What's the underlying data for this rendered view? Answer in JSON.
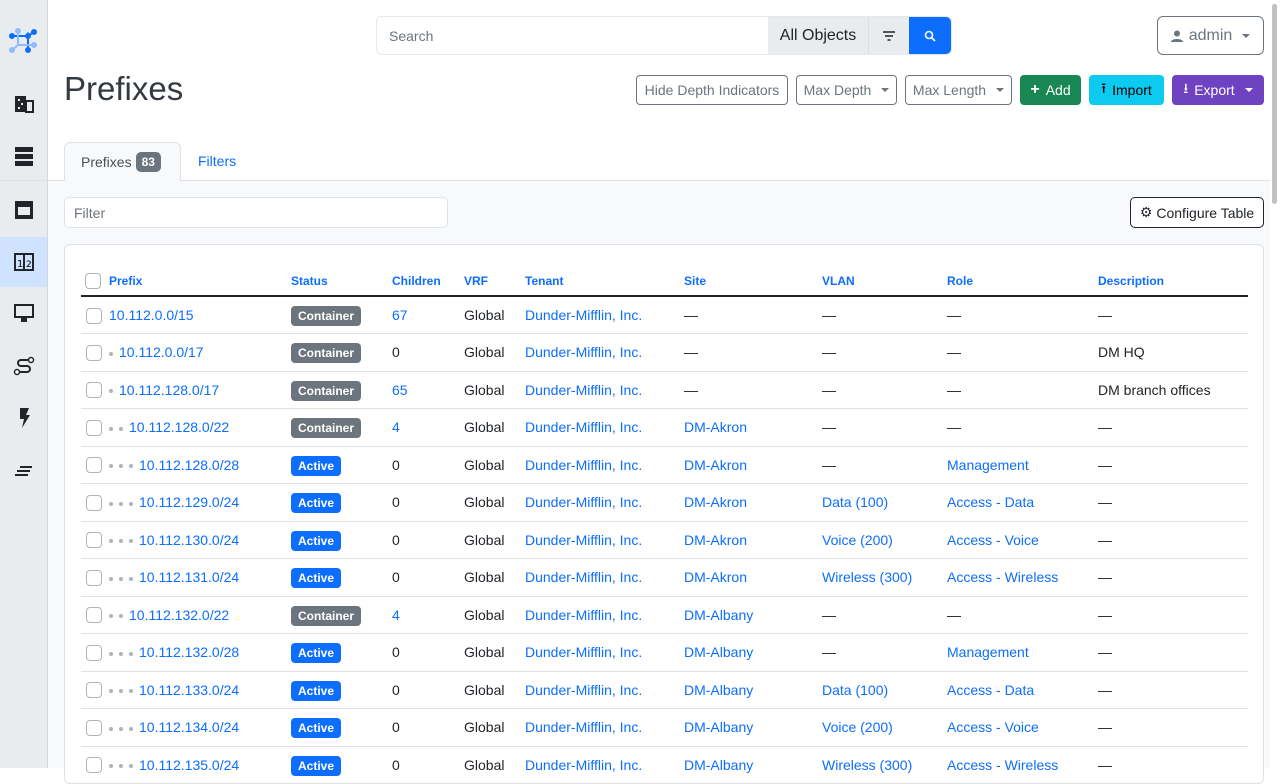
{
  "sidebar": {
    "items": [
      {
        "icon": "organization-icon"
      },
      {
        "icon": "devices-icon"
      },
      {
        "icon": "connections-icon"
      },
      {
        "icon": "ipam-icon",
        "active": true
      },
      {
        "icon": "virtualization-icon"
      },
      {
        "icon": "circuits-icon"
      },
      {
        "icon": "power-icon"
      },
      {
        "icon": "other-icon"
      }
    ]
  },
  "search": {
    "placeholder": "Search",
    "scope": "All Objects"
  },
  "user": {
    "name": "admin"
  },
  "page": {
    "title": "Prefixes"
  },
  "actions": {
    "hide_depth": "Hide Depth Indicators",
    "max_depth": "Max Depth",
    "max_length": "Max Length",
    "add": "Add",
    "import": "Import",
    "export": "Export"
  },
  "colors": {
    "add": "#198754",
    "import": "#0dcaf0",
    "export": "#6f42c1",
    "container": "#6c757d",
    "active": "#0d6efd"
  },
  "tabs": [
    {
      "label": "Prefixes",
      "count": "83"
    },
    {
      "label": "Filters"
    }
  ],
  "filter": {
    "placeholder": "Filter"
  },
  "configure_table": "Configure Table",
  "table": {
    "columns": [
      "Prefix",
      "Status",
      "Children",
      "VRF",
      "Tenant",
      "Site",
      "VLAN",
      "Role",
      "Description"
    ],
    "rows": [
      {
        "depth": 0,
        "prefix": "10.112.0.0/15",
        "status": "Container",
        "children": "67",
        "vrf": "Global",
        "tenant": "Dunder-Mifflin, Inc.",
        "site": "—",
        "vlan": "—",
        "role": "—",
        "description": "—"
      },
      {
        "depth": 1,
        "prefix": "10.112.0.0/17",
        "status": "Container",
        "children": "0",
        "vrf": "Global",
        "tenant": "Dunder-Mifflin, Inc.",
        "site": "—",
        "vlan": "—",
        "role": "—",
        "description": "DM HQ"
      },
      {
        "depth": 1,
        "prefix": "10.112.128.0/17",
        "status": "Container",
        "children": "65",
        "vrf": "Global",
        "tenant": "Dunder-Mifflin, Inc.",
        "site": "—",
        "vlan": "—",
        "role": "—",
        "description": "DM branch offices"
      },
      {
        "depth": 2,
        "prefix": "10.112.128.0/22",
        "status": "Container",
        "children": "4",
        "vrf": "Global",
        "tenant": "Dunder-Mifflin, Inc.",
        "site": "DM-Akron",
        "vlan": "—",
        "role": "—",
        "description": "—"
      },
      {
        "depth": 3,
        "prefix": "10.112.128.0/28",
        "status": "Active",
        "children": "0",
        "vrf": "Global",
        "tenant": "Dunder-Mifflin, Inc.",
        "site": "DM-Akron",
        "vlan": "—",
        "role": "Management",
        "description": "—"
      },
      {
        "depth": 3,
        "prefix": "10.112.129.0/24",
        "status": "Active",
        "children": "0",
        "vrf": "Global",
        "tenant": "Dunder-Mifflin, Inc.",
        "site": "DM-Akron",
        "vlan": "Data (100)",
        "role": "Access - Data",
        "description": "—"
      },
      {
        "depth": 3,
        "prefix": "10.112.130.0/24",
        "status": "Active",
        "children": "0",
        "vrf": "Global",
        "tenant": "Dunder-Mifflin, Inc.",
        "site": "DM-Akron",
        "vlan": "Voice (200)",
        "role": "Access - Voice",
        "description": "—"
      },
      {
        "depth": 3,
        "prefix": "10.112.131.0/24",
        "status": "Active",
        "children": "0",
        "vrf": "Global",
        "tenant": "Dunder-Mifflin, Inc.",
        "site": "DM-Akron",
        "vlan": "Wireless (300)",
        "role": "Access - Wireless",
        "description": "—"
      },
      {
        "depth": 2,
        "prefix": "10.112.132.0/22",
        "status": "Container",
        "children": "4",
        "vrf": "Global",
        "tenant": "Dunder-Mifflin, Inc.",
        "site": "DM-Albany",
        "vlan": "—",
        "role": "—",
        "description": "—"
      },
      {
        "depth": 3,
        "prefix": "10.112.132.0/28",
        "status": "Active",
        "children": "0",
        "vrf": "Global",
        "tenant": "Dunder-Mifflin, Inc.",
        "site": "DM-Albany",
        "vlan": "—",
        "role": "Management",
        "description": "—"
      },
      {
        "depth": 3,
        "prefix": "10.112.133.0/24",
        "status": "Active",
        "children": "0",
        "vrf": "Global",
        "tenant": "Dunder-Mifflin, Inc.",
        "site": "DM-Albany",
        "vlan": "Data (100)",
        "role": "Access - Data",
        "description": "—"
      },
      {
        "depth": 3,
        "prefix": "10.112.134.0/24",
        "status": "Active",
        "children": "0",
        "vrf": "Global",
        "tenant": "Dunder-Mifflin, Inc.",
        "site": "DM-Albany",
        "vlan": "Voice (200)",
        "role": "Access - Voice",
        "description": "—"
      },
      {
        "depth": 3,
        "prefix": "10.112.135.0/24",
        "status": "Active",
        "children": "0",
        "vrf": "Global",
        "tenant": "Dunder-Mifflin, Inc.",
        "site": "DM-Albany",
        "vlan": "Wireless (300)",
        "role": "Access - Wireless",
        "description": "—"
      }
    ]
  }
}
